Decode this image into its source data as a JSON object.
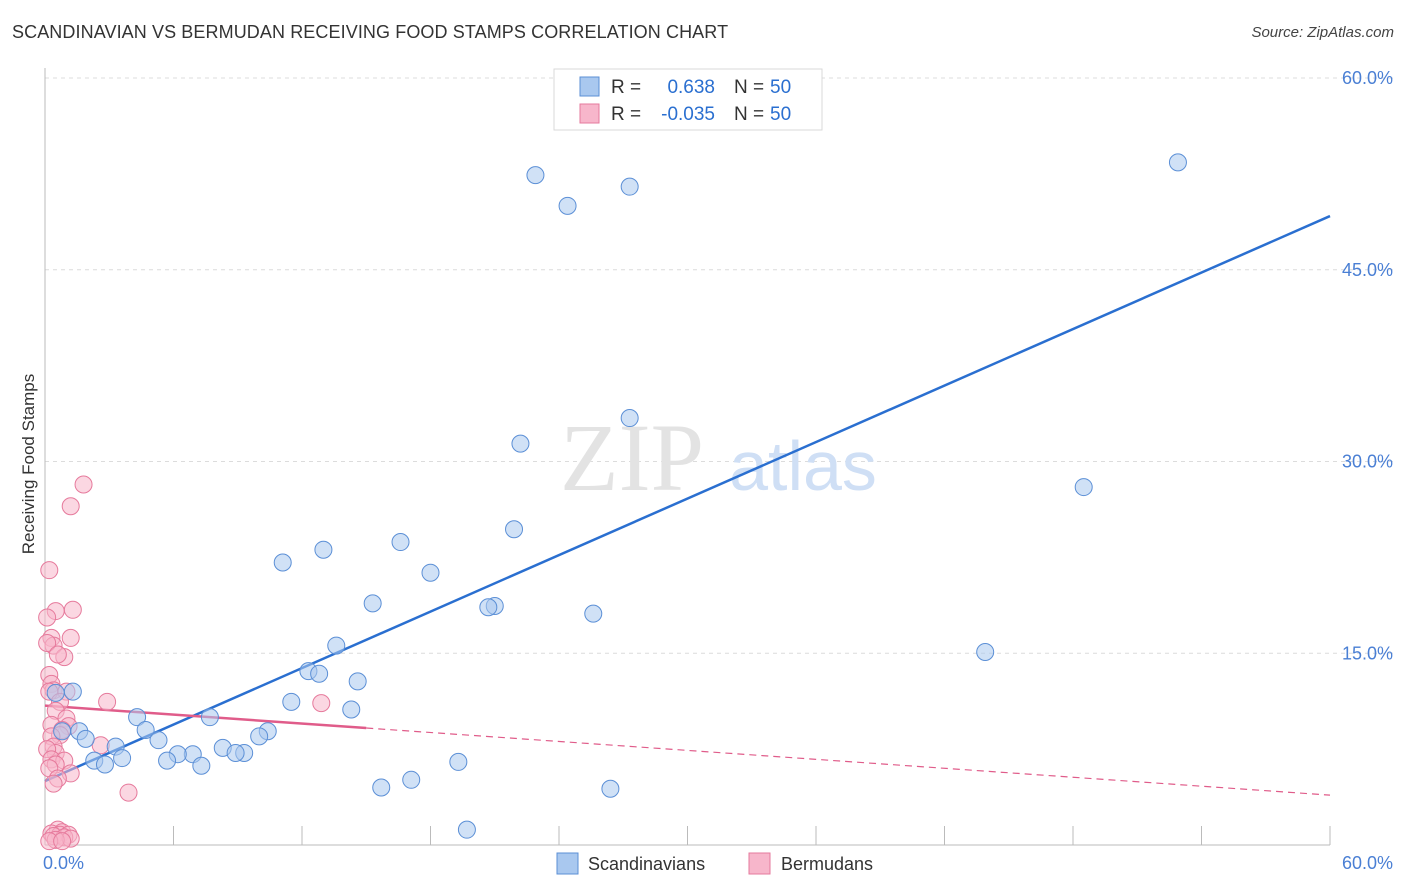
{
  "header": {
    "title": "SCANDINAVIAN VS BERMUDAN RECEIVING FOOD STAMPS CORRELATION CHART",
    "source": "Source: ZipAtlas.com"
  },
  "watermark": {
    "zip": "ZIP",
    "atlas": "atlas"
  },
  "legend": {
    "rows": [
      {
        "r_label": "R =",
        "r_value": "0.638",
        "n_label": "N =",
        "n_value": "50"
      },
      {
        "r_label": "R =",
        "r_value": "-0.035",
        "n_label": "N =",
        "n_value": "50"
      }
    ]
  },
  "bottom_legend": [
    "Scandinavians",
    "Bermudans"
  ],
  "colors": {
    "blue_fill": "#a9c8ef",
    "blue_stroke": "#5b8fd6",
    "blue_line": "#2a6fd0",
    "pink_fill": "#f7b6cb",
    "pink_stroke": "#e67a9c",
    "pink_line": "#e05c8a",
    "tick_text": "#4a7fd4",
    "grid": "#dcdcdc"
  },
  "chart_data": {
    "type": "scatter",
    "xlabel": "",
    "ylabel": "Receiving Food Stamps",
    "xlim": [
      0,
      60
    ],
    "ylim": [
      0,
      60
    ],
    "x_tick_labels": [
      "0.0%",
      "60.0%"
    ],
    "y_ticks": [
      15,
      30,
      45,
      60
    ],
    "y_tick_labels": [
      "15.0%",
      "30.0%",
      "45.0%",
      "60.0%"
    ],
    "grid": true,
    "legend_position": "top-center",
    "series": [
      {
        "name": "Scandinavians",
        "color": "#a9c8ef",
        "points": [
          [
            52.9,
            53.4
          ],
          [
            22.9,
            52.4
          ],
          [
            27.3,
            51.5
          ],
          [
            24.4,
            50.0
          ],
          [
            27.3,
            33.4
          ],
          [
            22.2,
            31.4
          ],
          [
            48.5,
            28.0
          ],
          [
            21.9,
            24.7
          ],
          [
            16.6,
            23.7
          ],
          [
            13.0,
            23.1
          ],
          [
            11.1,
            22.1
          ],
          [
            18.0,
            21.3
          ],
          [
            15.3,
            18.9
          ],
          [
            21.0,
            18.7
          ],
          [
            20.7,
            18.6
          ],
          [
            25.6,
            18.1
          ],
          [
            43.9,
            15.1
          ],
          [
            13.6,
            15.6
          ],
          [
            12.3,
            13.6
          ],
          [
            12.8,
            13.4
          ],
          [
            14.6,
            12.8
          ],
          [
            11.5,
            11.2
          ],
          [
            14.3,
            10.6
          ],
          [
            1.3,
            12.0
          ],
          [
            4.3,
            10.0
          ],
          [
            7.7,
            10.0
          ],
          [
            4.7,
            9.0
          ],
          [
            1.6,
            8.9
          ],
          [
            0.8,
            8.9
          ],
          [
            10.4,
            8.9
          ],
          [
            10.0,
            8.5
          ],
          [
            5.3,
            8.2
          ],
          [
            1.9,
            8.3
          ],
          [
            3.3,
            7.7
          ],
          [
            8.3,
            7.6
          ],
          [
            6.9,
            7.1
          ],
          [
            6.2,
            7.1
          ],
          [
            9.3,
            7.2
          ],
          [
            8.9,
            7.2
          ],
          [
            3.6,
            6.8
          ],
          [
            5.7,
            6.6
          ],
          [
            2.3,
            6.6
          ],
          [
            2.8,
            6.3
          ],
          [
            7.3,
            6.2
          ],
          [
            19.3,
            6.5
          ],
          [
            17.1,
            5.1
          ],
          [
            15.7,
            4.5
          ],
          [
            26.4,
            4.4
          ],
          [
            0.5,
            11.9
          ],
          [
            19.7,
            1.2
          ]
        ]
      },
      {
        "name": "Bermudans",
        "color": "#f7b6cb",
        "points": [
          [
            1.8,
            28.2
          ],
          [
            1.2,
            26.5
          ],
          [
            0.2,
            21.5
          ],
          [
            0.5,
            18.3
          ],
          [
            1.3,
            18.4
          ],
          [
            0.1,
            17.8
          ],
          [
            0.3,
            16.2
          ],
          [
            1.2,
            16.2
          ],
          [
            0.4,
            15.6
          ],
          [
            0.1,
            15.8
          ],
          [
            0.9,
            14.7
          ],
          [
            0.2,
            13.3
          ],
          [
            0.3,
            12.6
          ],
          [
            0.4,
            12.1
          ],
          [
            1.0,
            12.0
          ],
          [
            0.2,
            12.0
          ],
          [
            0.7,
            11.2
          ],
          [
            2.9,
            11.2
          ],
          [
            12.9,
            11.1
          ],
          [
            0.5,
            10.5
          ],
          [
            1.0,
            9.9
          ],
          [
            0.3,
            9.4
          ],
          [
            1.1,
            9.3
          ],
          [
            0.8,
            9.0
          ],
          [
            0.7,
            8.6
          ],
          [
            0.3,
            8.5
          ],
          [
            0.4,
            7.7
          ],
          [
            2.6,
            7.8
          ],
          [
            0.5,
            7.2
          ],
          [
            0.1,
            7.5
          ],
          [
            0.3,
            6.7
          ],
          [
            0.9,
            6.6
          ],
          [
            0.5,
            6.3
          ],
          [
            0.2,
            6.0
          ],
          [
            1.2,
            5.6
          ],
          [
            0.6,
            5.2
          ],
          [
            0.4,
            4.8
          ],
          [
            3.9,
            4.1
          ],
          [
            0.6,
            1.2
          ],
          [
            0.8,
            1.0
          ],
          [
            0.3,
            0.9
          ],
          [
            0.7,
            0.8
          ],
          [
            1.1,
            0.8
          ],
          [
            0.4,
            0.7
          ],
          [
            0.9,
            0.6
          ],
          [
            1.2,
            0.5
          ],
          [
            0.5,
            0.4
          ],
          [
            0.2,
            0.3
          ],
          [
            0.8,
            0.3
          ],
          [
            0.6,
            14.9
          ]
        ]
      }
    ],
    "trendlines": [
      {
        "series": "Scandinavians",
        "x": [
          0,
          60
        ],
        "y": [
          5.0,
          49.2
        ],
        "style": "solid"
      },
      {
        "series": "Bermudans",
        "solid_x": [
          0,
          15
        ],
        "x": [
          0,
          60
        ],
        "y": [
          10.9,
          3.9
        ],
        "style": "solid-then-dashed"
      }
    ]
  }
}
